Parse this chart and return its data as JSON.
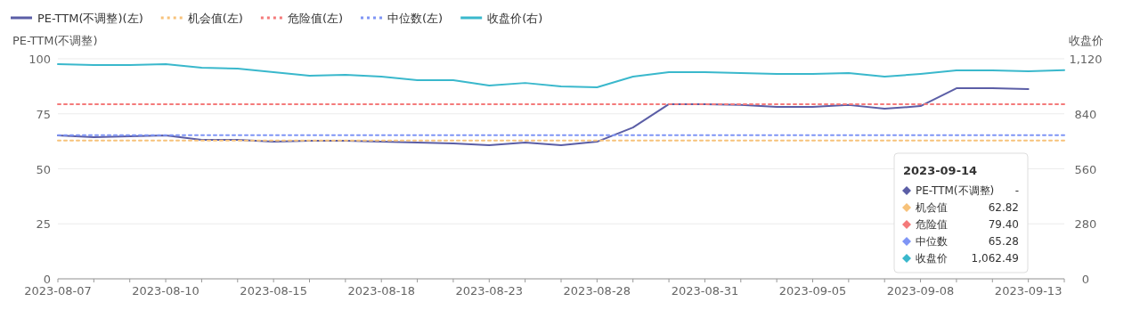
{
  "chart_data": {
    "type": "line",
    "ylabel": "PE-TTM(不调整)",
    "y2label": "收盘价",
    "categories": [
      "2023-08-07",
      null,
      null,
      "2023-08-10",
      null,
      null,
      "2023-08-15",
      null,
      null,
      "2023-08-18",
      null,
      null,
      "2023-08-23",
      null,
      null,
      "2023-08-28",
      null,
      null,
      "2023-08-31",
      null,
      null,
      "2023-09-05",
      null,
      null,
      "2023-09-08",
      null,
      null,
      "2023-09-13",
      null
    ],
    "ylim": [
      0,
      100
    ],
    "yticks": [
      0,
      25,
      50,
      75,
      100
    ],
    "y2lim": [
      0,
      1120
    ],
    "y2ticks": [
      0,
      280,
      560,
      840,
      {
        "value": 1120,
        "label": "1,120"
      }
    ],
    "grid": "y",
    "legend": "top left",
    "series": [
      {
        "name": "PE-TTM(不调整)(左)",
        "color": "#5b5ea6",
        "line_style": "solid",
        "values": [
          65.2,
          64.4,
          64.8,
          65.2,
          63.2,
          63.2,
          62.3,
          62.8,
          62.8,
          62.3,
          61.9,
          61.5,
          60.7,
          61.9,
          60.7,
          62.3,
          68.8,
          79.4,
          79.4,
          79.0,
          78.1,
          78.1,
          79.0,
          77.3,
          78.5,
          86.6,
          86.6,
          86.2,
          null
        ]
      },
      {
        "name": "机会值(左)",
        "color": "#f7c27a",
        "line_style": "dotted",
        "values": [
          62.82,
          62.82,
          62.82,
          62.82,
          62.82,
          62.82,
          62.82,
          62.82,
          62.82,
          62.82,
          62.82,
          62.82,
          62.82,
          62.82,
          62.82,
          62.82,
          62.82,
          62.82,
          62.82,
          62.82,
          62.82,
          62.82,
          62.82,
          62.82,
          62.82,
          62.82,
          62.82,
          62.82,
          62.82
        ]
      },
      {
        "name": "危险值(左)",
        "color": "#f47a7a",
        "line_style": "dotted",
        "values": [
          79.4,
          79.4,
          79.4,
          79.4,
          79.4,
          79.4,
          79.4,
          79.4,
          79.4,
          79.4,
          79.4,
          79.4,
          79.4,
          79.4,
          79.4,
          79.4,
          79.4,
          79.4,
          79.4,
          79.4,
          79.4,
          79.4,
          79.4,
          79.4,
          79.4,
          79.4,
          79.4,
          79.4,
          79.4
        ]
      },
      {
        "name": "中位数(左)",
        "color": "#7f95f5",
        "line_style": "dotted",
        "values": [
          65.28,
          65.28,
          65.28,
          65.28,
          65.28,
          65.28,
          65.28,
          65.28,
          65.28,
          65.28,
          65.28,
          65.28,
          65.28,
          65.28,
          65.28,
          65.28,
          65.28,
          65.28,
          65.28,
          65.28,
          65.28,
          65.28,
          65.28,
          65.28,
          65.28,
          65.28,
          65.28,
          65.28,
          65.28
        ]
      },
      {
        "name": "收盘价(右)",
        "color": "#3ab8cc",
        "line_style": "solid",
        "axis": "y2",
        "values": [
          1093,
          1088,
          1088,
          1093,
          1075,
          1070,
          1052,
          1034,
          1038,
          1029,
          1011,
          1011,
          984,
          997,
          979,
          975,
          1029,
          1052,
          1052,
          1047,
          1043,
          1043,
          1047,
          1029,
          1043,
          1061,
          1061,
          1056,
          1062.49
        ]
      }
    ],
    "annotations": [
      "2023-09-14",
      "PE-TTM(不调整)",
      "-",
      "机会值",
      "62.82",
      "危险值",
      "79.40",
      "中位数",
      "65.28",
      "收盘价",
      "1,062.49"
    ]
  }
}
